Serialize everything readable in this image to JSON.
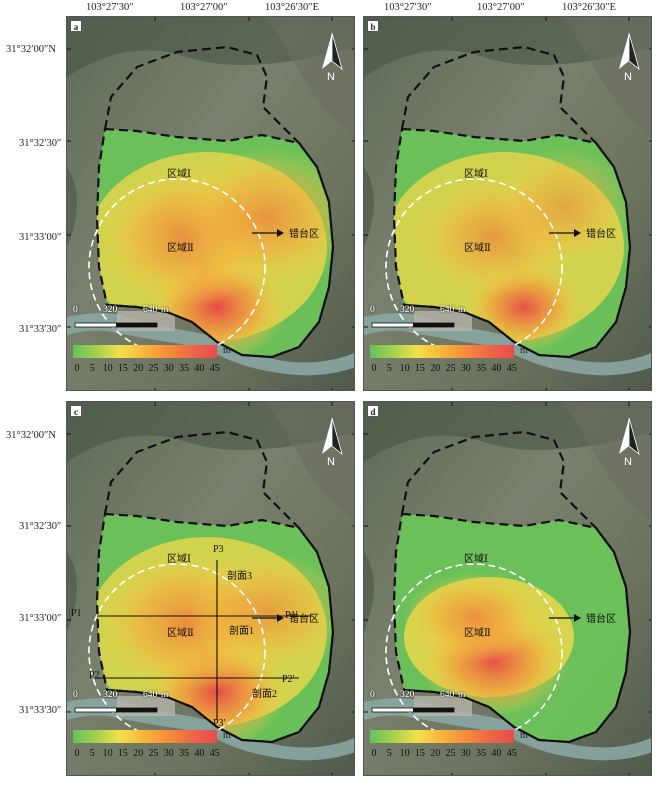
{
  "figure": {
    "top_lon_labels": [
      "103°27′30″",
      "103°27′00″",
      "103°26′30″E"
    ],
    "left_lat_labels": [
      "31°32′00″N",
      "31°32′30″",
      "31°33′00″",
      "31°33′30″"
    ],
    "lat_labels_c": [
      "31°32′00″N",
      "31°32′30″",
      "31°33′00″",
      "31°33′30″"
    ]
  },
  "panels": [
    {
      "id": "a",
      "zone1": "区域Ⅰ",
      "zone2": "区域Ⅱ",
      "arrow_label": "错台区"
    },
    {
      "id": "b",
      "zone1": "区域Ⅰ",
      "zone2": "区域Ⅱ",
      "arrow_label": "错台区"
    },
    {
      "id": "c",
      "zone1": "区域Ⅰ",
      "zone2": "区域Ⅱ",
      "arrow_label": "错台区",
      "profiles": {
        "p1": "P1",
        "p1p": "P1′",
        "p2": "P2",
        "p2p": "P2′",
        "p3": "P3",
        "p3p": "P3′",
        "sec1": "剖面1",
        "sec2": "剖面2",
        "sec3": "剖面3"
      }
    },
    {
      "id": "d",
      "zone1": "区域Ⅰ",
      "zone2": "区域Ⅱ",
      "arrow_label": "错台区"
    }
  ],
  "north_label": "N",
  "scalebar": {
    "ticks": [
      "0",
      "320",
      "640"
    ],
    "unit": "m"
  },
  "legend": {
    "unit": "m",
    "ticks": [
      "0",
      "5",
      "10",
      "15",
      "20",
      "25",
      "30",
      "35",
      "40",
      "45"
    ],
    "colors": [
      "#63c356",
      "#a9d24e",
      "#f3e04a",
      "#f7b43e",
      "#f58a3a",
      "#ee6647",
      "#e84c4c"
    ]
  }
}
